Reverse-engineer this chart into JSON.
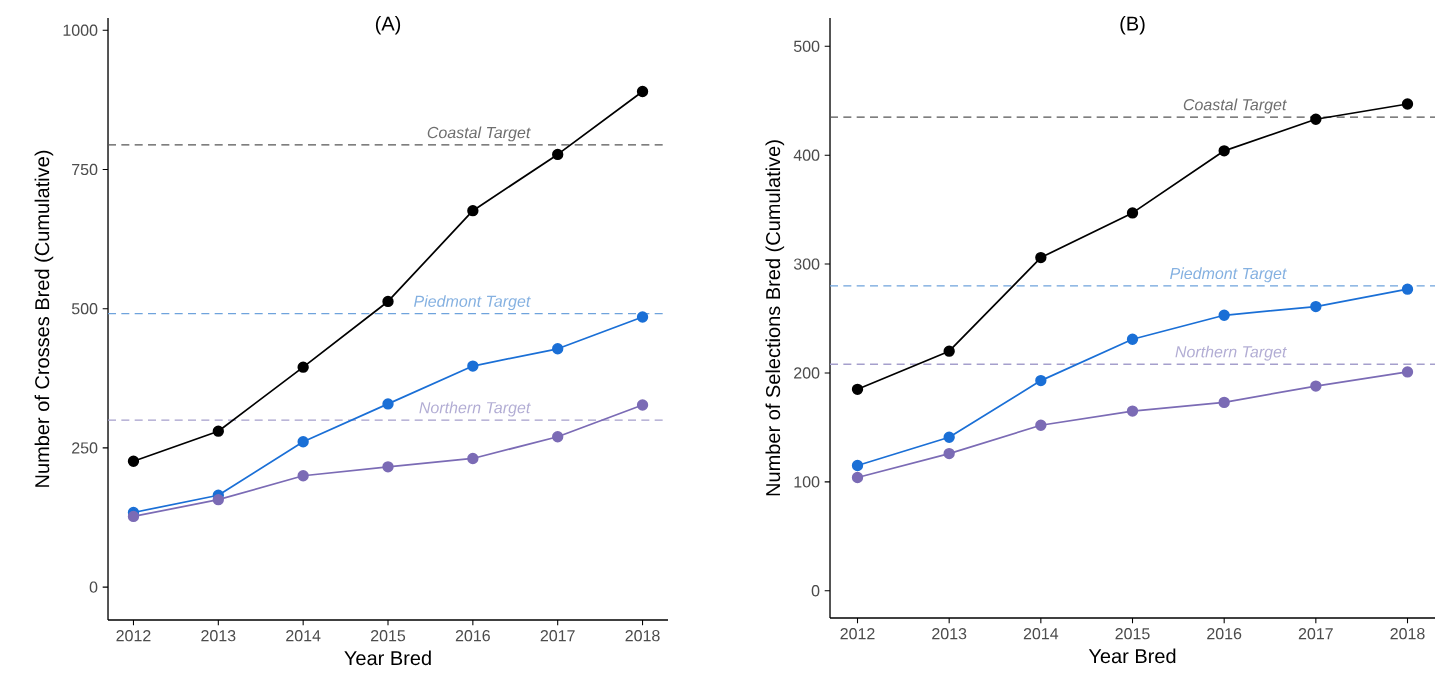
{
  "chart_data": [
    {
      "type": "line",
      "title": "(A)",
      "xlabel": "Year Bred",
      "ylabel": "Number of Crosses Bred (Cumulative)",
      "x": [
        2012,
        2013,
        2014,
        2015,
        2016,
        2017,
        2018
      ],
      "xlim": [
        2011.7,
        2018.3
      ],
      "xticks": [
        2012,
        2013,
        2014,
        2015,
        2016,
        2017,
        2018
      ],
      "ylim": [
        -59,
        1022
      ],
      "yticks": [
        0,
        250,
        500,
        750,
        1000
      ],
      "marker": "circle",
      "series": [
        {
          "color": "#000000",
          "values": [
            226,
            280,
            395,
            513,
            676,
            777,
            890
          ]
        },
        {
          "color": "#1a6fd6",
          "values": [
            134,
            165,
            261,
            329,
            397,
            428,
            485
          ]
        },
        {
          "color": "#7b6bb5",
          "values": [
            127,
            157,
            200,
            216,
            231,
            270,
            327
          ]
        }
      ],
      "ref_lines": [
        {
          "axis": "y",
          "value": 794,
          "label": "Coastal Target",
          "color": "#555555",
          "line_style": "dashed"
        },
        {
          "axis": "y",
          "value": 491,
          "label": "Piedmont Target",
          "color": "#6fa3dc",
          "line_style": "dashed"
        },
        {
          "axis": "y",
          "value": 300,
          "label": "Northern Target",
          "color": "#a59fcc",
          "line_style": "dashed"
        }
      ]
    },
    {
      "type": "line",
      "title": "(B)",
      "xlabel": "Year Bred",
      "ylabel": "Number of Selections Bred (Cumulative)",
      "x": [
        2012,
        2013,
        2014,
        2015,
        2016,
        2017,
        2018
      ],
      "xlim": [
        2011.7,
        2018.3
      ],
      "xticks": [
        2012,
        2013,
        2014,
        2015,
        2016,
        2017,
        2018
      ],
      "ylim": [
        -25,
        526
      ],
      "yticks": [
        0,
        100,
        200,
        300,
        400,
        500
      ],
      "marker": "circle",
      "series": [
        {
          "color": "#000000",
          "values": [
            185,
            220,
            306,
            347,
            404,
            433,
            447
          ]
        },
        {
          "color": "#1a6fd6",
          "values": [
            115,
            141,
            193,
            231,
            253,
            261,
            277
          ]
        },
        {
          "color": "#7b6bb5",
          "values": [
            104,
            126,
            152,
            165,
            173,
            188,
            201
          ]
        }
      ],
      "ref_lines": [
        {
          "axis": "y",
          "value": 435,
          "label": "Coastal Target",
          "color": "#555555",
          "line_style": "dashed"
        },
        {
          "axis": "y",
          "value": 280,
          "label": "Piedmont Target",
          "color": "#6fa3dc",
          "line_style": "dashed"
        },
        {
          "axis": "y",
          "value": 208,
          "label": "Northern Target",
          "color": "#a59fcc",
          "line_style": "dashed"
        }
      ]
    }
  ]
}
